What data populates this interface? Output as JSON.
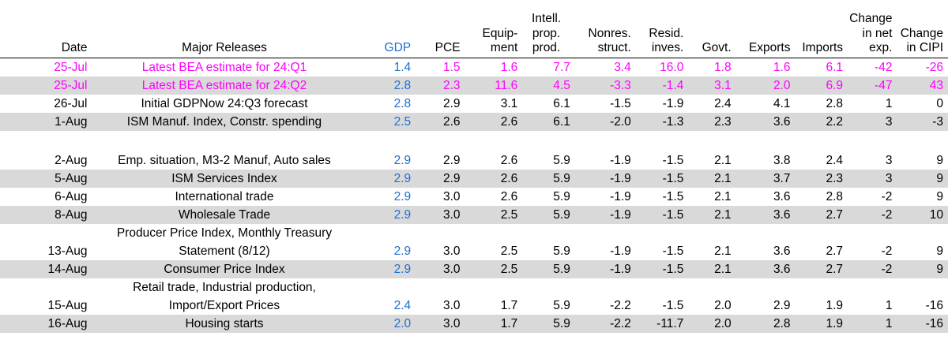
{
  "colors": {
    "gdp": "#1f6fd1",
    "highlight": "#ff00ff",
    "shade": "#d9d9d9"
  },
  "headers": {
    "date": "Date",
    "release": "Major Releases",
    "gdp": "GDP",
    "pce": "PCE",
    "equip": [
      "Equip-",
      "ment"
    ],
    "intell": [
      "Intell.",
      "prop.",
      "prod."
    ],
    "nonres": [
      "Nonres.",
      "struct."
    ],
    "resid": [
      "Resid.",
      "inves."
    ],
    "govt": "Govt.",
    "exports": "Exports",
    "imports": "Imports",
    "netexp": [
      "Change",
      "in net",
      "exp."
    ],
    "cipi": [
      "Change",
      "in CIPI"
    ]
  },
  "rows": [
    {
      "date": "25-Jul",
      "release": [
        "Latest BEA estimate for 24:Q1"
      ],
      "gdp": "1.4",
      "pce": "1.5",
      "equip": "1.6",
      "intell": "7.7",
      "nonres": "3.4",
      "resid": "16.0",
      "govt": "1.8",
      "exports": "1.6",
      "imports": "6.1",
      "netexp": "-42",
      "cipi": "-26"
    },
    {
      "date": "25-Jul",
      "release": [
        "Latest BEA estimate for 24:Q2"
      ],
      "gdp": "2.8",
      "pce": "2.3",
      "equip": "11.6",
      "intell": "4.5",
      "nonres": "-3.3",
      "resid": "-1.4",
      "govt": "3.1",
      "exports": "2.0",
      "imports": "6.9",
      "netexp": "-47",
      "cipi": "43"
    },
    {
      "date": "26-Jul",
      "release": [
        "Initial GDPNow 24:Q3 forecast"
      ],
      "gdp": "2.8",
      "pce": "2.9",
      "equip": "3.1",
      "intell": "6.1",
      "nonres": "-1.5",
      "resid": "-1.9",
      "govt": "2.4",
      "exports": "4.1",
      "imports": "2.8",
      "netexp": "1",
      "cipi": "0"
    },
    {
      "date": "1-Aug",
      "release": [
        "ISM Manuf. Index, Constr. spending"
      ],
      "gdp": "2.5",
      "pce": "2.6",
      "equip": "2.6",
      "intell": "6.1",
      "nonres": "-2.0",
      "resid": "-1.3",
      "govt": "2.3",
      "exports": "3.6",
      "imports": "2.2",
      "netexp": "3",
      "cipi": "-3"
    },
    {
      "date": "2-Aug",
      "release": [
        "Emp. situation, M3-2 Manuf, Auto sales"
      ],
      "gdp": "2.9",
      "pce": "2.9",
      "equip": "2.6",
      "intell": "5.9",
      "nonres": "-1.9",
      "resid": "-1.5",
      "govt": "2.1",
      "exports": "3.8",
      "imports": "2.4",
      "netexp": "3",
      "cipi": "9"
    },
    {
      "date": "5-Aug",
      "release": [
        "ISM Services Index"
      ],
      "gdp": "2.9",
      "pce": "2.9",
      "equip": "2.6",
      "intell": "5.9",
      "nonres": "-1.9",
      "resid": "-1.5",
      "govt": "2.1",
      "exports": "3.7",
      "imports": "2.3",
      "netexp": "3",
      "cipi": "9"
    },
    {
      "date": "6-Aug",
      "release": [
        "International trade"
      ],
      "gdp": "2.9",
      "pce": "3.0",
      "equip": "2.6",
      "intell": "5.9",
      "nonres": "-1.9",
      "resid": "-1.5",
      "govt": "2.1",
      "exports": "3.6",
      "imports": "2.8",
      "netexp": "-2",
      "cipi": "9"
    },
    {
      "date": "8-Aug",
      "release": [
        "Wholesale Trade"
      ],
      "gdp": "2.9",
      "pce": "3.0",
      "equip": "2.5",
      "intell": "5.9",
      "nonres": "-1.9",
      "resid": "-1.5",
      "govt": "2.1",
      "exports": "3.6",
      "imports": "2.7",
      "netexp": "-2",
      "cipi": "10"
    },
    {
      "date": "13-Aug",
      "release": [
        "Producer Price Index, Monthly Treasury",
        "Statement (8/12)"
      ],
      "gdp": "2.9",
      "pce": "3.0",
      "equip": "2.5",
      "intell": "5.9",
      "nonres": "-1.9",
      "resid": "-1.5",
      "govt": "2.1",
      "exports": "3.6",
      "imports": "2.7",
      "netexp": "-2",
      "cipi": "9"
    },
    {
      "date": "14-Aug",
      "release": [
        "Consumer Price Index"
      ],
      "gdp": "2.9",
      "pce": "3.0",
      "equip": "2.5",
      "intell": "5.9",
      "nonres": "-1.9",
      "resid": "-1.5",
      "govt": "2.1",
      "exports": "3.6",
      "imports": "2.7",
      "netexp": "-2",
      "cipi": "9"
    },
    {
      "date": "15-Aug",
      "release": [
        "Retail trade, Industrial production,",
        "Import/Export Prices"
      ],
      "gdp": "2.4",
      "pce": "3.0",
      "equip": "1.7",
      "intell": "5.9",
      "nonres": "-2.2",
      "resid": "-1.5",
      "govt": "2.0",
      "exports": "2.9",
      "imports": "1.9",
      "netexp": "1",
      "cipi": "-16"
    },
    {
      "date": "16-Aug",
      "release": [
        "Housing starts"
      ],
      "gdp": "2.0",
      "pce": "3.0",
      "equip": "1.7",
      "intell": "5.9",
      "nonres": "-2.2",
      "resid": "-11.7",
      "govt": "2.0",
      "exports": "2.8",
      "imports": "1.9",
      "netexp": "1",
      "cipi": "-16"
    }
  ]
}
